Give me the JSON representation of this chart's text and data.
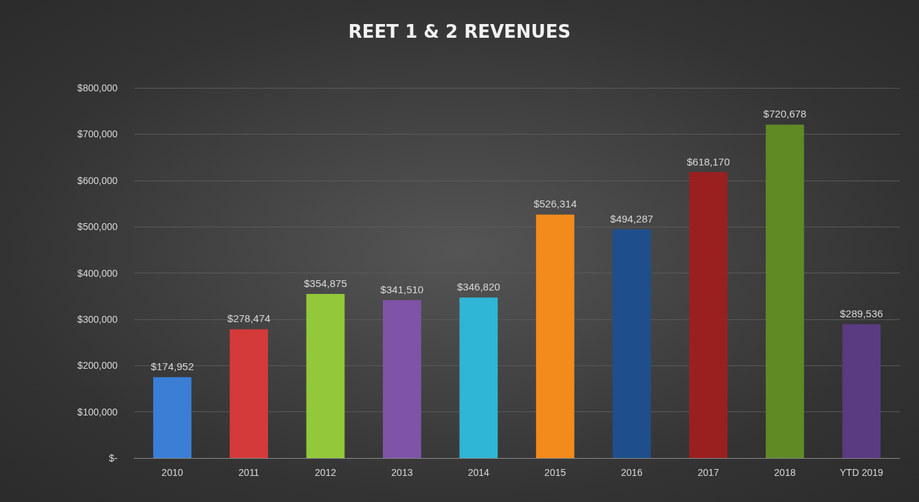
{
  "chart_data": {
    "type": "bar",
    "title": "REET 1 & 2 REVENUES",
    "categories": [
      "2010",
      "2011",
      "2012",
      "2013",
      "2014",
      "2015",
      "2016",
      "2017",
      "2018",
      "YTD 2019"
    ],
    "values": [
      174952,
      278474,
      354875,
      341510,
      346820,
      526314,
      494287,
      618170,
      720678,
      289536
    ],
    "colors": [
      "#3a7fd5",
      "#d43a3a",
      "#92c83a",
      "#7f53a8",
      "#2fb5d5",
      "#f28a1c",
      "#1f4e8c",
      "#9a2020",
      "#5f8a24",
      "#5a3a80"
    ],
    "value_labels": [
      "$174,952",
      "$278,474",
      "$354,875",
      "$341,510",
      "$346,820",
      "$526,314",
      "$494,287",
      "$618,170",
      "$720,678",
      "$289,536"
    ],
    "ylim": [
      0,
      800000
    ],
    "yticks": [
      {
        "value": 0,
        "label": "$-"
      },
      {
        "value": 100000,
        "label": "$100,000"
      },
      {
        "value": 200000,
        "label": "$200,000"
      },
      {
        "value": 300000,
        "label": "$300,000"
      },
      {
        "value": 400000,
        "label": "$400,000"
      },
      {
        "value": 500000,
        "label": "$500,000"
      },
      {
        "value": 600000,
        "label": "$600,000"
      },
      {
        "value": 700000,
        "label": "$700,000"
      },
      {
        "value": 800000,
        "label": "$800,000"
      }
    ],
    "grid": "y"
  }
}
